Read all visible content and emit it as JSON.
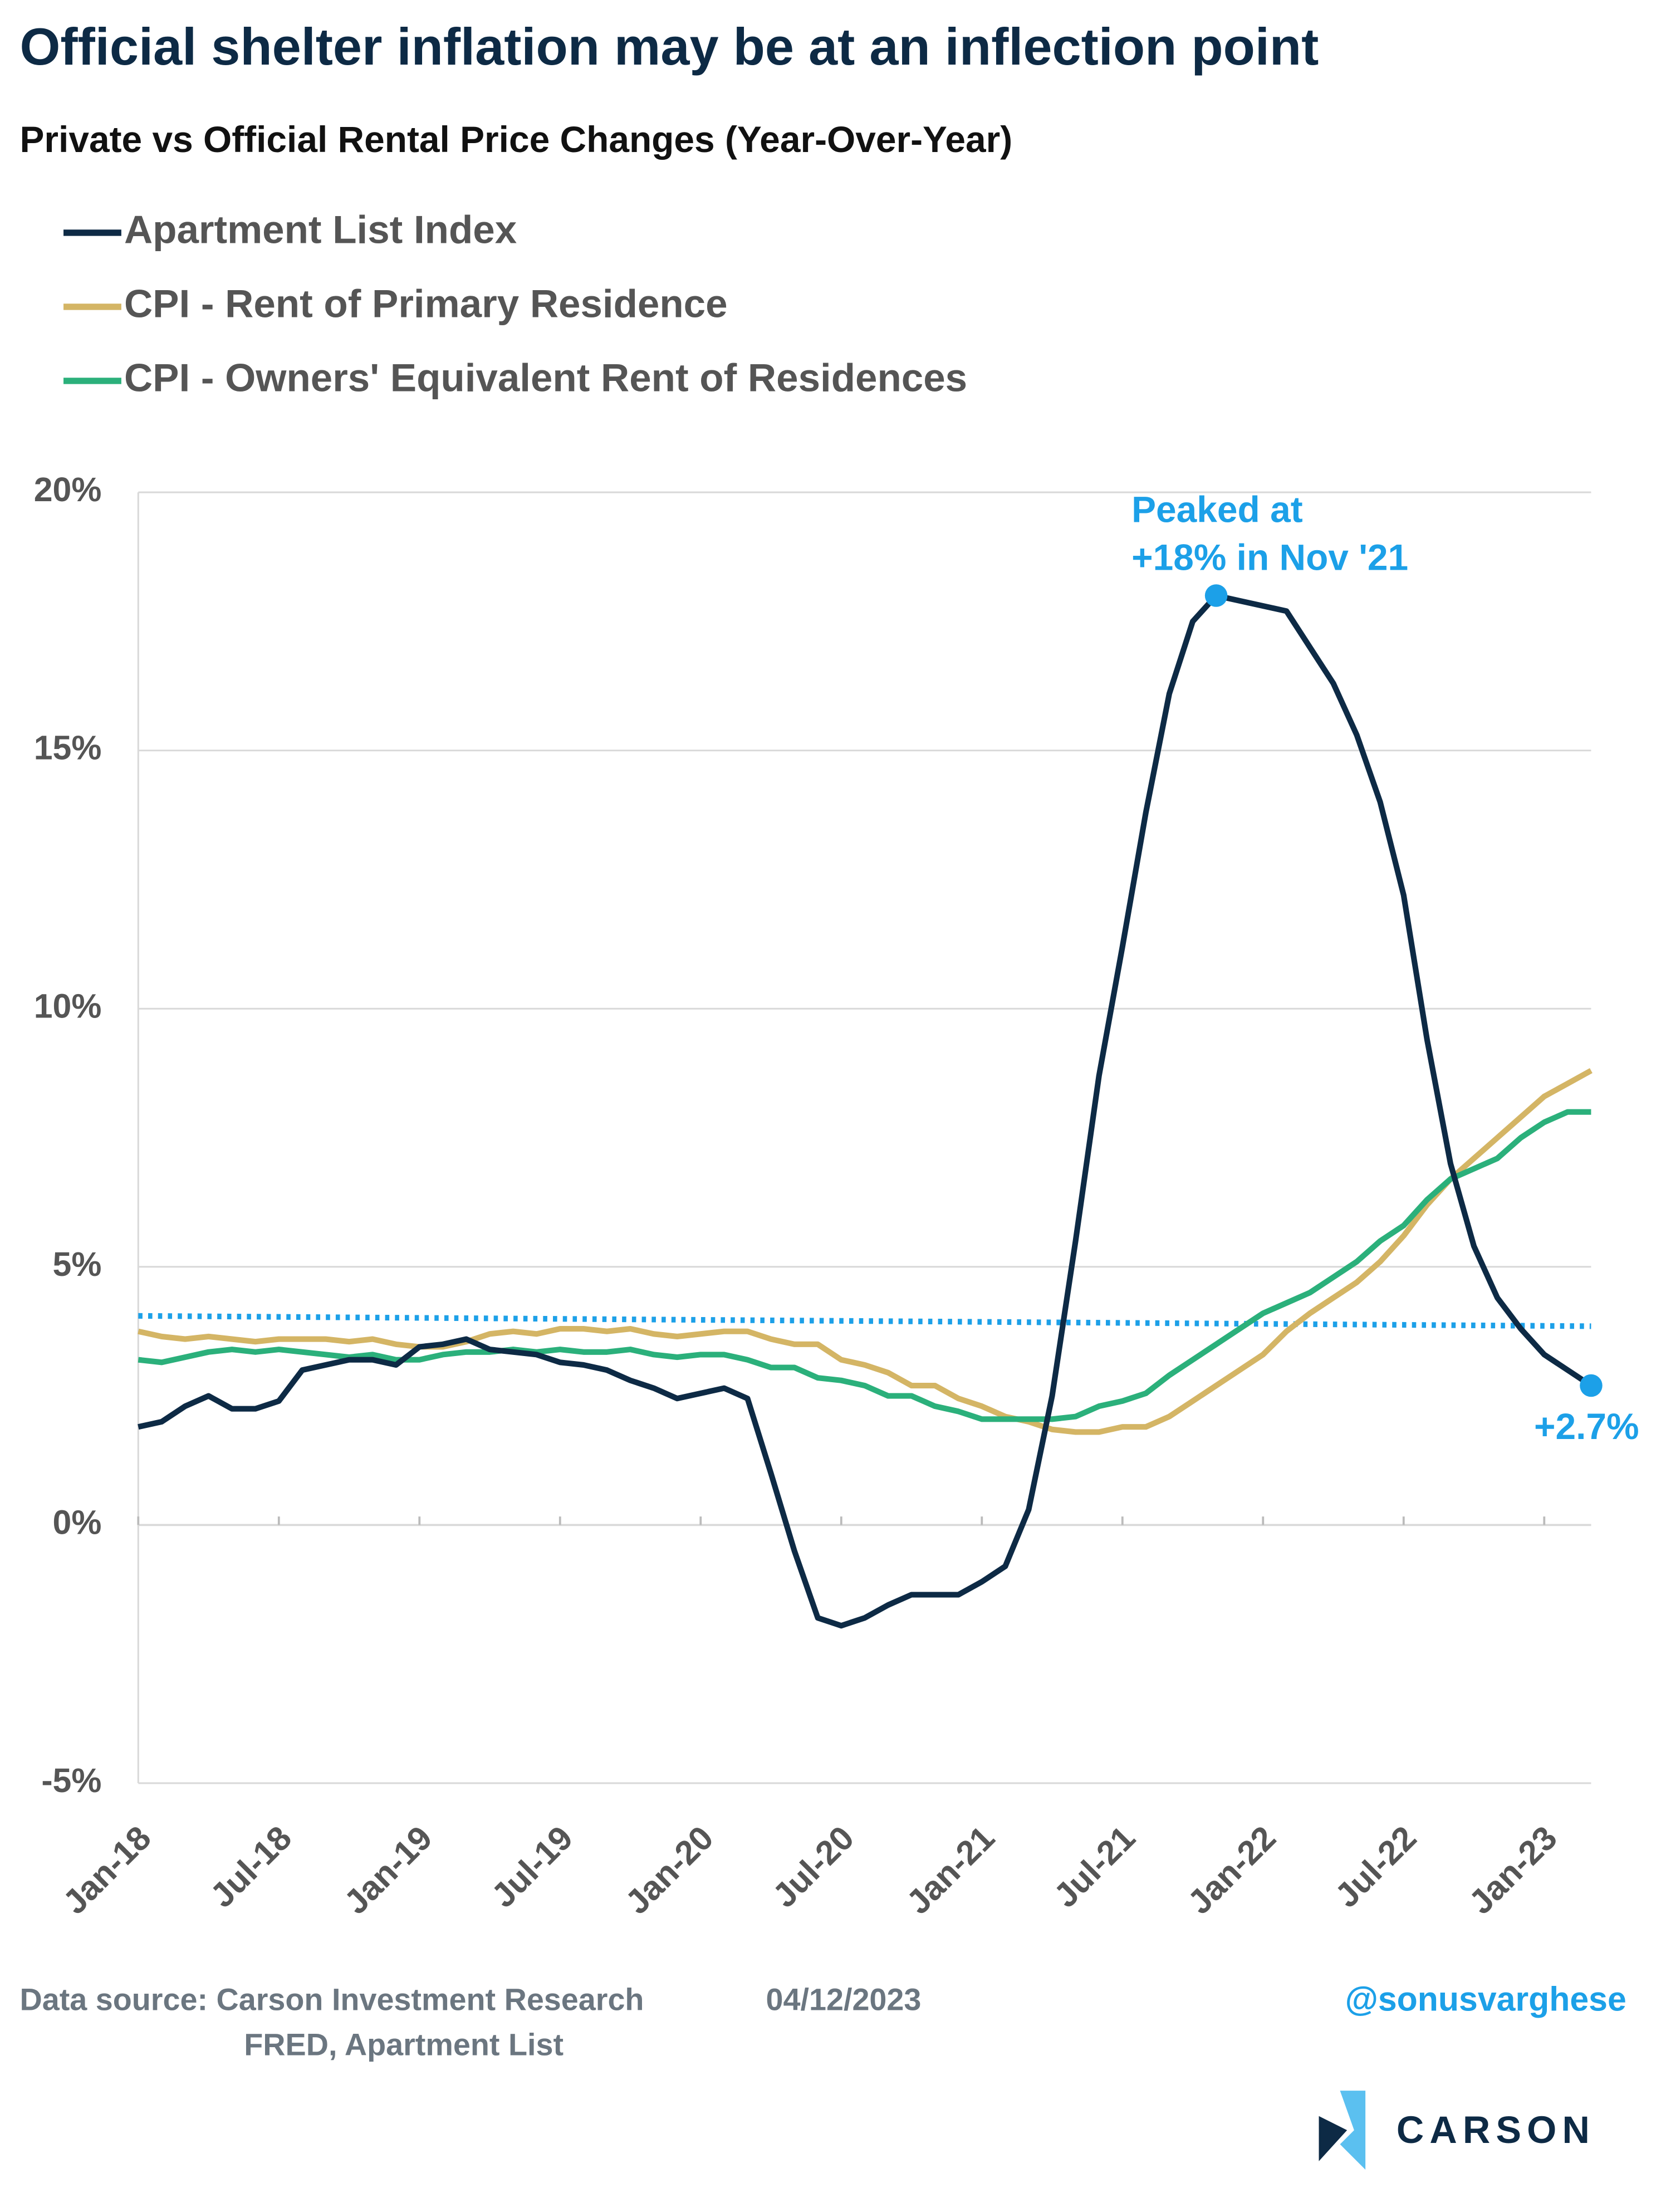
{
  "chart_data": {
    "type": "line",
    "title": "Official shelter inflation may be at an inflection point",
    "subtitle": "Private vs Official Rental Price Changes (Year-Over-Year)",
    "categories": [
      "Jan-18",
      null,
      null,
      null,
      null,
      null,
      "Jul-18",
      null,
      null,
      null,
      null,
      null,
      "Jan-19",
      null,
      null,
      null,
      null,
      null,
      "Jul-19",
      null,
      null,
      null,
      null,
      null,
      "Jan-20",
      null,
      null,
      null,
      null,
      null,
      "Jul-20",
      null,
      null,
      null,
      null,
      null,
      "Jan-21",
      null,
      null,
      null,
      null,
      null,
      "Jul-21",
      null,
      null,
      null,
      null,
      null,
      "Jan-22",
      null,
      null,
      null,
      null,
      null,
      "Jul-22",
      null,
      null,
      null,
      null,
      null,
      "Jan-23",
      null,
      null
    ],
    "series": [
      {
        "name": "Apartment List Index",
        "color": "#0d2a45",
        "values": [
          1.9,
          2.0,
          2.3,
          2.5,
          2.25,
          2.25,
          2.4,
          3.0,
          3.1,
          3.2,
          3.2,
          3.1,
          3.45,
          3.5,
          3.6,
          3.4,
          3.35,
          3.3,
          3.15,
          3.1,
          3.0,
          2.8,
          2.65,
          2.45,
          2.55,
          2.65,
          2.45,
          1.0,
          -0.5,
          -1.8,
          -1.95,
          -1.8,
          -1.55,
          -1.35,
          -1.35,
          -1.35,
          -1.1,
          -0.8,
          0.3,
          2.5,
          5.5,
          8.7,
          11.2,
          13.8,
          16.1,
          17.5,
          18.0,
          17.9,
          17.8,
          17.7,
          17.0,
          16.3,
          15.3,
          14.0,
          12.2,
          9.4,
          7.0,
          5.4,
          4.4,
          3.8,
          3.3,
          3.0,
          2.7
        ]
      },
      {
        "name": "CPI - Rent of Primary Residence",
        "color": "#d4b565",
        "values": [
          3.75,
          3.65,
          3.6,
          3.65,
          3.6,
          3.55,
          3.6,
          3.6,
          3.6,
          3.55,
          3.6,
          3.5,
          3.45,
          3.45,
          3.55,
          3.7,
          3.75,
          3.7,
          3.8,
          3.8,
          3.75,
          3.8,
          3.7,
          3.65,
          3.7,
          3.75,
          3.75,
          3.6,
          3.5,
          3.5,
          3.2,
          3.1,
          2.95,
          2.7,
          2.7,
          2.45,
          2.3,
          2.1,
          2.0,
          1.85,
          1.8,
          1.8,
          1.9,
          1.9,
          2.1,
          2.4,
          2.7,
          3.0,
          3.3,
          3.75,
          4.1,
          4.4,
          4.7,
          5.1,
          5.6,
          6.2,
          6.7,
          7.1,
          7.5,
          7.9,
          8.3,
          8.55,
          8.8
        ]
      },
      {
        "name": "CPI - Owners' Equivalent Rent of Residences",
        "color": "#2bb07b",
        "values": [
          3.2,
          3.15,
          3.25,
          3.35,
          3.4,
          3.35,
          3.4,
          3.35,
          3.3,
          3.25,
          3.3,
          3.2,
          3.2,
          3.3,
          3.35,
          3.35,
          3.4,
          3.35,
          3.4,
          3.35,
          3.35,
          3.4,
          3.3,
          3.25,
          3.3,
          3.3,
          3.2,
          3.05,
          3.05,
          2.85,
          2.8,
          2.7,
          2.5,
          2.5,
          2.3,
          2.2,
          2.05,
          2.05,
          2.05,
          2.05,
          2.1,
          2.3,
          2.4,
          2.55,
          2.9,
          3.2,
          3.5,
          3.8,
          4.1,
          4.3,
          4.5,
          4.8,
          5.1,
          5.5,
          5.8,
          6.3,
          6.7,
          6.9,
          7.1,
          7.5,
          7.8,
          8.0,
          8.0
        ]
      }
    ],
    "trend_line": {
      "color": "#1ca0e8",
      "values": [
        4.05,
        3.85
      ]
    },
    "annotations": [
      {
        "text": [
          "Peaked at",
          "+18% in Nov '21"
        ],
        "series": 0,
        "index": 46,
        "color": "#1ca0e8"
      },
      {
        "text": [
          "+2.7%"
        ],
        "series": 0,
        "index": 62,
        "color": "#1ca0e8"
      }
    ],
    "ylim": [
      -5,
      20
    ],
    "yticks": [
      {
        "value": -5,
        "label": "-5%"
      },
      {
        "value": 0,
        "label": "0%"
      },
      {
        "value": 5,
        "label": "5%"
      },
      {
        "value": 10,
        "label": "10%"
      },
      {
        "value": 15,
        "label": "15%"
      },
      {
        "value": 20,
        "label": "20%"
      }
    ],
    "grid": true,
    "legend": "top-left",
    "source": [
      "Data source: Carson Investment Research",
      "04/12/2023",
      "FRED, Apartment List"
    ],
    "handle": "@sonusvarghese",
    "logo": "CARSON"
  }
}
